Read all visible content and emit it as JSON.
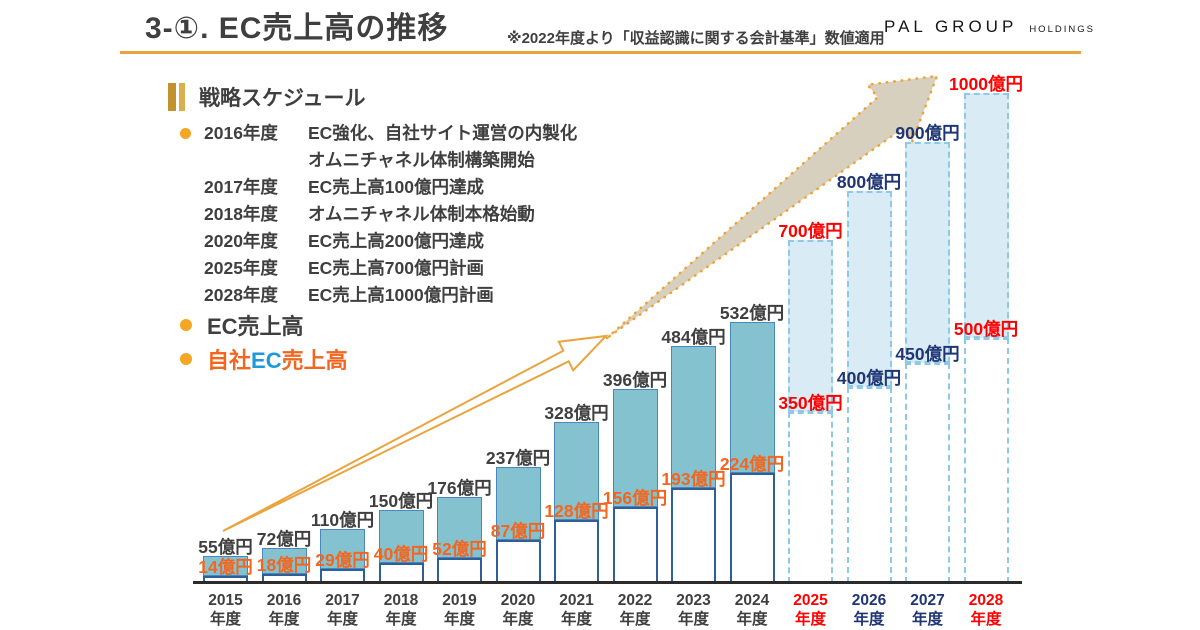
{
  "header": {
    "title": "3-①. EC売上高の推移",
    "note": "※2022年度より「収益認識に関する会計基準」数値適用",
    "logo_primary": "PAL GROUP",
    "logo_secondary": "HOLDINGS"
  },
  "schedule": {
    "heading": "戦略スケジュール",
    "items": [
      {
        "bullet": true,
        "year": "2016年度",
        "lines": [
          "EC強化、自社サイト運営の内製化",
          "オムニチャネル体制構築開始"
        ]
      },
      {
        "bullet": false,
        "year": "2017年度",
        "lines": [
          "EC売上高100億円達成"
        ]
      },
      {
        "bullet": false,
        "year": "2018年度",
        "lines": [
          "オムニチャネル体制本格始動"
        ]
      },
      {
        "bullet": false,
        "year": "2020年度",
        "lines": [
          "EC売上高200億円達成"
        ]
      },
      {
        "bullet": false,
        "year": "2025年度",
        "lines": [
          "EC売上高700億円計画"
        ]
      },
      {
        "bullet": false,
        "year": "2028年度",
        "lines": [
          "EC売上高1000億円計画"
        ]
      }
    ]
  },
  "legend": {
    "items": [
      {
        "segments": [
          {
            "text": "EC売上高",
            "color": "#3f3f3f"
          }
        ]
      },
      {
        "segments": [
          {
            "text": "自社",
            "color": "#f2661f"
          },
          {
            "text": "EC",
            "color": "#1d9bd8"
          },
          {
            "text": "売上高",
            "color": "#f2661f"
          }
        ]
      }
    ]
  },
  "chart_data": {
    "type": "bar",
    "title": "EC売上高の推移",
    "unit": "億円",
    "categories": [
      "2015",
      "2016",
      "2017",
      "2018",
      "2019",
      "2020",
      "2021",
      "2022",
      "2023",
      "2024",
      "2025",
      "2026",
      "2027",
      "2028"
    ],
    "category_suffix": "年度",
    "series": [
      {
        "name": "EC売上高",
        "values": [
          55,
          72,
          110,
          150,
          176,
          237,
          328,
          396,
          484,
          532,
          700,
          800,
          900,
          1000
        ]
      },
      {
        "name": "自社EC売上高",
        "values": [
          14,
          18,
          29,
          40,
          52,
          87,
          128,
          156,
          193,
          224,
          350,
          400,
          450,
          500
        ]
      }
    ],
    "forecast_start_index": 10,
    "ylim": [
      0,
      1000
    ],
    "grid": false,
    "legend_position": "left",
    "emphasis": {
      "red_indices": [
        10,
        13
      ],
      "navy_indices": [
        11,
        12
      ]
    }
  },
  "colors": {
    "accent_gold": "#eba33e",
    "bar_teal": "#85c2cf",
    "bar_teal_border": "#4a86c0",
    "bar_white_border": "#2e5f96",
    "forecast_fill": "#d9ebf5",
    "forecast_border": "#8ec9e6",
    "own_label_orange": "#f2661f",
    "red": "#ff0000",
    "navy": "#1f3575",
    "text_dark": "#3f3f3f",
    "legend_ec_blue": "#1d9bd8",
    "arrow_tan": "#d6cdbb"
  }
}
